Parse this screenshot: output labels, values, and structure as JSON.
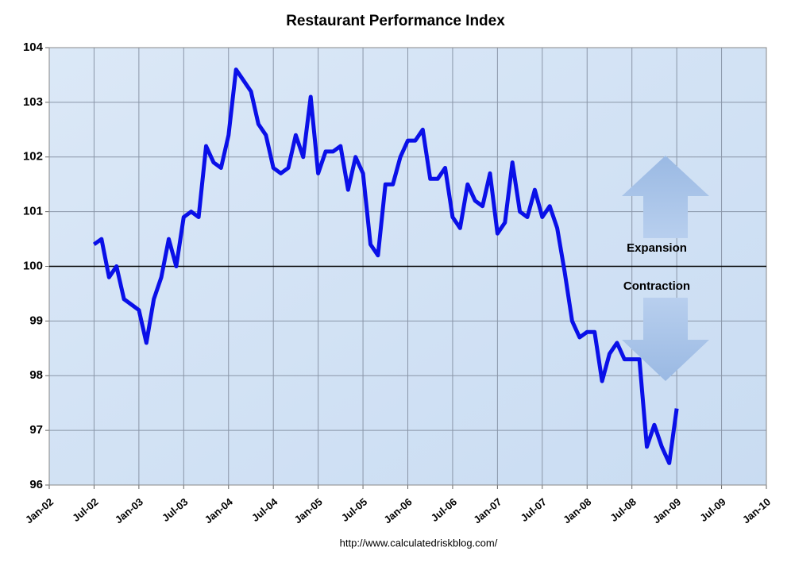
{
  "chart_data": {
    "type": "line",
    "title": "Restaurant Performance Index",
    "source": "http://www.calculatedriskblog.com/",
    "annotations": [
      "Expansion",
      "Contraction"
    ],
    "reference_line": 100,
    "grid": true,
    "xlim": [
      "2002-01",
      "2010-01"
    ],
    "xticks": [
      {
        "value": "2002-01",
        "label": "Jan-02"
      },
      {
        "value": "2002-07",
        "label": "Jul-02"
      },
      {
        "value": "2003-01",
        "label": "Jan-03"
      },
      {
        "value": "2003-07",
        "label": "Jul-03"
      },
      {
        "value": "2004-01",
        "label": "Jan-04"
      },
      {
        "value": "2004-07",
        "label": "Jul-04"
      },
      {
        "value": "2005-01",
        "label": "Jan-05"
      },
      {
        "value": "2005-07",
        "label": "Jul-05"
      },
      {
        "value": "2006-01",
        "label": "Jan-06"
      },
      {
        "value": "2006-07",
        "label": "Jul-06"
      },
      {
        "value": "2007-01",
        "label": "Jan-07"
      },
      {
        "value": "2007-07",
        "label": "Jul-07"
      },
      {
        "value": "2008-01",
        "label": "Jan-08"
      },
      {
        "value": "2008-07",
        "label": "Jul-08"
      },
      {
        "value": "2009-01",
        "label": "Jan-09"
      },
      {
        "value": "2009-07",
        "label": "Jul-09"
      },
      {
        "value": "2010-01",
        "label": "Jan-10"
      }
    ],
    "ylim": [
      96,
      104
    ],
    "yticks": [
      96,
      97,
      98,
      99,
      100,
      101,
      102,
      103,
      104
    ],
    "x": [
      "2002-07",
      "2002-08",
      "2002-09",
      "2002-10",
      "2002-11",
      "2002-12",
      "2003-01",
      "2003-02",
      "2003-03",
      "2003-04",
      "2003-05",
      "2003-06",
      "2003-07",
      "2003-08",
      "2003-09",
      "2003-10",
      "2003-11",
      "2003-12",
      "2004-01",
      "2004-02",
      "2004-03",
      "2004-04",
      "2004-05",
      "2004-06",
      "2004-07",
      "2004-08",
      "2004-09",
      "2004-10",
      "2004-11",
      "2004-12",
      "2005-01",
      "2005-02",
      "2005-03",
      "2005-04",
      "2005-05",
      "2005-06",
      "2005-07",
      "2005-08",
      "2005-09",
      "2005-10",
      "2005-11",
      "2005-12",
      "2006-01",
      "2006-02",
      "2006-03",
      "2006-04",
      "2006-05",
      "2006-06",
      "2006-07",
      "2006-08",
      "2006-09",
      "2006-10",
      "2006-11",
      "2006-12",
      "2007-01",
      "2007-02",
      "2007-03",
      "2007-04",
      "2007-05",
      "2007-06",
      "2007-07",
      "2007-08",
      "2007-09",
      "2007-10",
      "2007-11",
      "2007-12",
      "2008-01",
      "2008-02",
      "2008-03",
      "2008-04",
      "2008-05",
      "2008-06",
      "2008-07",
      "2008-08",
      "2008-09",
      "2008-10",
      "2008-11",
      "2008-12",
      "2009-01"
    ],
    "series": [
      {
        "name": "Restaurant Performance Index",
        "color": "#0a10e8",
        "values": [
          100.4,
          100.5,
          99.8,
          100.0,
          99.4,
          99.3,
          99.2,
          98.6,
          99.4,
          99.8,
          100.5,
          100.0,
          100.9,
          101.0,
          100.9,
          102.2,
          101.9,
          101.8,
          102.4,
          103.6,
          103.4,
          103.2,
          102.6,
          102.4,
          101.8,
          101.7,
          101.8,
          102.4,
          102.0,
          103.1,
          101.7,
          102.1,
          102.1,
          102.2,
          101.4,
          102.0,
          101.7,
          100.4,
          100.2,
          101.5,
          101.5,
          102.0,
          102.3,
          102.3,
          102.5,
          101.6,
          101.6,
          101.8,
          100.9,
          100.7,
          101.5,
          101.2,
          101.1,
          101.7,
          100.6,
          100.8,
          101.9,
          101.0,
          100.9,
          101.4,
          100.9,
          101.1,
          100.7,
          99.9,
          99.0,
          98.7,
          98.8,
          98.8,
          97.9,
          98.4,
          98.6,
          98.3,
          98.3,
          98.3,
          96.7,
          97.1,
          96.7,
          96.4,
          97.4
        ]
      }
    ]
  }
}
